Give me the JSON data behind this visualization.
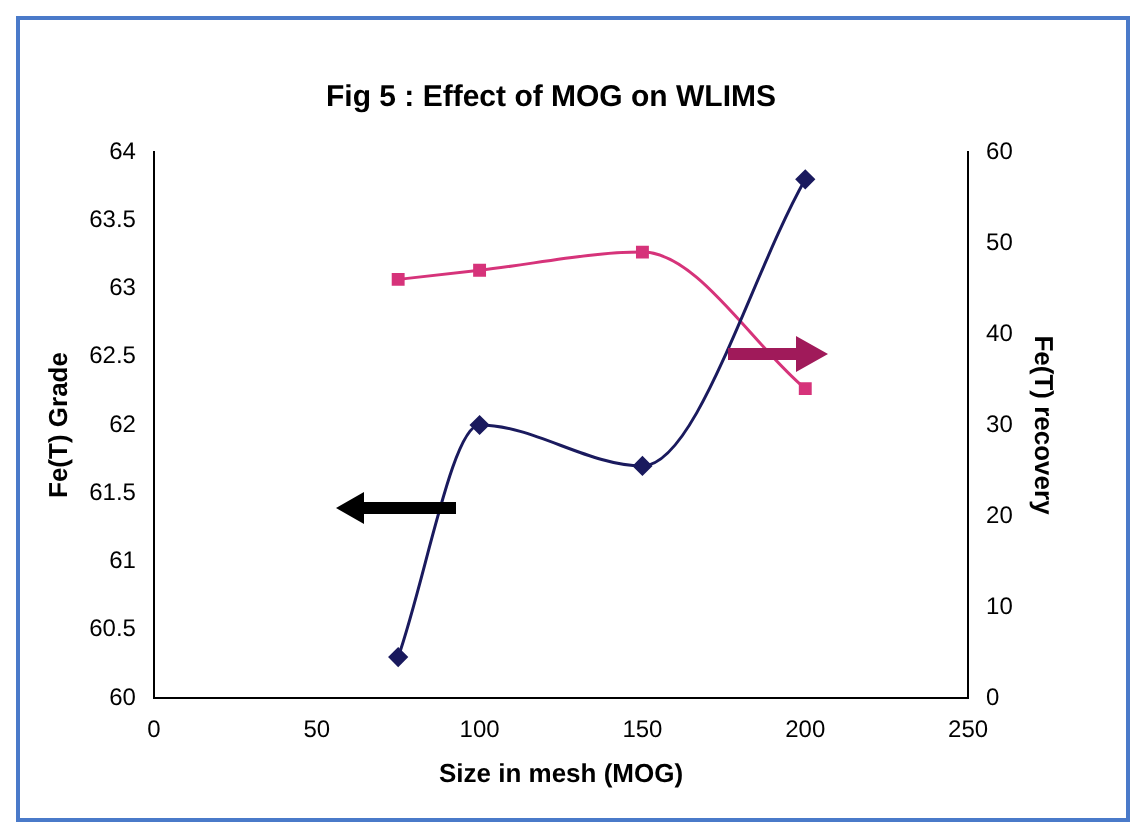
{
  "chart_data": {
    "type": "line",
    "title": "Fig 5 : Effect of MOG on WLIMS",
    "xlabel": "Size in mesh (MOG)",
    "ylabel": "Fe(T) Grade",
    "y2label": "Fe(T) recovery",
    "x": [
      75,
      100,
      150,
      200
    ],
    "series": [
      {
        "color": "#1a1a5e",
        "marker": "diamond",
        "values": [
          60.3,
          62.0,
          61.7,
          63.8
        ]
      },
      {
        "color": "#d6337a",
        "marker": "square",
        "axis": "y2",
        "values": [
          46,
          47,
          49,
          34
        ]
      }
    ],
    "xlim": [
      0,
      250
    ],
    "xticks": [
      0,
      50,
      100,
      150,
      200,
      250
    ],
    "ylim": [
      60,
      64
    ],
    "yticks": [
      60,
      60.5,
      61,
      61.5,
      62,
      62.5,
      63,
      63.5,
      64
    ],
    "y2lim": [
      0,
      60
    ],
    "y2ticks": [
      0,
      10,
      20,
      30,
      40,
      50,
      60
    ],
    "grid": false,
    "legend": false
  }
}
